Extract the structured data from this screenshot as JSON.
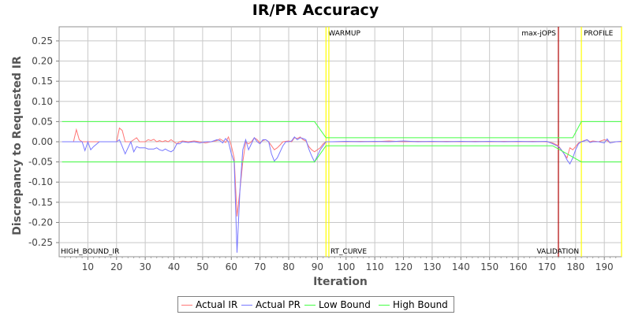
{
  "chart_data": {
    "type": "line",
    "title": "IR/PR Accuracy",
    "xlabel": "Iteration",
    "ylabel": "Discrepancy to Requested IR",
    "xlim": [
      0,
      196
    ],
    "ylim": [
      -0.285,
      0.285
    ],
    "x_ticks": [
      10,
      20,
      30,
      40,
      50,
      60,
      70,
      80,
      90,
      100,
      110,
      120,
      130,
      140,
      150,
      160,
      170,
      180,
      190
    ],
    "y_ticks": [
      0.25,
      0.2,
      0.15,
      0.1,
      0.05,
      0.0,
      -0.05,
      -0.1,
      -0.15,
      -0.2,
      -0.25
    ],
    "y_tick_labels": [
      "0.25",
      "0.20",
      "0.15",
      "0.10",
      "0.05",
      "0.00",
      "-0.05",
      "-0.10",
      "-0.15",
      "-0.20",
      "-0.25"
    ],
    "grid": true,
    "legend_position": "bottom",
    "markers": [
      {
        "x": 93,
        "label": "WARMUP",
        "color": "#ffff00"
      },
      {
        "x": 94,
        "label": "",
        "color": "#ffff00"
      },
      {
        "x": 174,
        "label": "max-jOPS",
        "color": "#b00000"
      },
      {
        "x": 182,
        "label": "PROFILE",
        "color": "#ffff00"
      },
      {
        "x": 196,
        "label": "",
        "color": "#ffff00"
      }
    ],
    "annotations": [
      "HIGH_BOUND_IR",
      "RT_CURVE",
      "VALIDATION"
    ],
    "series": [
      {
        "name": "Actual IR",
        "color": "#ff7777",
        "points": [
          [
            1,
            0
          ],
          [
            5,
            0
          ],
          [
            6,
            0.03
          ],
          [
            7,
            0.005
          ],
          [
            8,
            0
          ],
          [
            10,
            0
          ],
          [
            12,
            0
          ],
          [
            14,
            0
          ],
          [
            16,
            0
          ],
          [
            18,
            0
          ],
          [
            20,
            0
          ],
          [
            21,
            0.034
          ],
          [
            22,
            0.028
          ],
          [
            23,
            0
          ],
          [
            25,
            0
          ],
          [
            27,
            0.01
          ],
          [
            28,
            0
          ],
          [
            30,
            0
          ],
          [
            31,
            0.005
          ],
          [
            32,
            0.003
          ],
          [
            33,
            0.006
          ],
          [
            34,
            0
          ],
          [
            35,
            0.003
          ],
          [
            36,
            0
          ],
          [
            37,
            0.003
          ],
          [
            38,
            0
          ],
          [
            39,
            0.005
          ],
          [
            40,
            0
          ],
          [
            41,
            -0.005
          ],
          [
            42,
            0
          ],
          [
            43,
            0.002
          ],
          [
            45,
            0
          ],
          [
            47,
            0.002
          ],
          [
            49,
            0
          ],
          [
            51,
            -0.003
          ],
          [
            53,
            0
          ],
          [
            55,
            0.003
          ],
          [
            56,
            0.007
          ],
          [
            57,
            0.003
          ],
          [
            58,
            -0.002
          ],
          [
            59,
            0.012
          ],
          [
            60,
            -0.01
          ],
          [
            61,
            -0.04
          ],
          [
            62,
            -0.185
          ],
          [
            63,
            -0.12
          ],
          [
            64,
            -0.05
          ],
          [
            65,
            0
          ],
          [
            66,
            -0.005
          ],
          [
            67,
            0
          ],
          [
            68,
            0.01
          ],
          [
            69,
            0.005
          ],
          [
            70,
            -0.003
          ],
          [
            71,
            0.003
          ],
          [
            72,
            0.005
          ],
          [
            73,
            0
          ],
          [
            74,
            -0.01
          ],
          [
            75,
            -0.02
          ],
          [
            76,
            -0.015
          ],
          [
            77,
            -0.008
          ],
          [
            78,
            0
          ],
          [
            80,
            0.002
          ],
          [
            81,
            0
          ],
          [
            82,
            0.01
          ],
          [
            83,
            0.008
          ],
          [
            84,
            0.012
          ],
          [
            85,
            0.005
          ],
          [
            86,
            0.002
          ],
          [
            87,
            -0.012
          ],
          [
            88,
            -0.02
          ],
          [
            89,
            -0.025
          ],
          [
            90,
            -0.02
          ],
          [
            91,
            -0.015
          ],
          [
            92,
            -0.005
          ],
          [
            93,
            0
          ],
          [
            95,
            0
          ],
          [
            100,
            0
          ],
          [
            105,
            0.001
          ],
          [
            110,
            0
          ],
          [
            115,
            0.002
          ],
          [
            120,
            0
          ],
          [
            125,
            0.001
          ],
          [
            130,
            0
          ],
          [
            135,
            0.001
          ],
          [
            140,
            0
          ],
          [
            145,
            0.001
          ],
          [
            150,
            0
          ],
          [
            155,
            0.001
          ],
          [
            160,
            0
          ],
          [
            165,
            0.001
          ],
          [
            170,
            0
          ],
          [
            172,
            -0.003
          ],
          [
            174,
            -0.01
          ],
          [
            175,
            -0.02
          ],
          [
            176,
            -0.03
          ],
          [
            177,
            -0.04
          ],
          [
            178,
            -0.015
          ],
          [
            179,
            -0.02
          ],
          [
            180,
            -0.012
          ],
          [
            181,
            -0.003
          ],
          [
            182,
            0
          ],
          [
            183,
            0.003
          ],
          [
            184,
            0.005
          ],
          [
            185,
            0
          ],
          [
            186,
            0.002
          ],
          [
            188,
            0
          ],
          [
            190,
            0.005
          ],
          [
            191,
            0.003
          ],
          [
            192,
            -0.003
          ],
          [
            194,
            0
          ],
          [
            196,
            0
          ]
        ]
      },
      {
        "name": "Actual PR",
        "color": "#7777ff",
        "points": [
          [
            1,
            0
          ],
          [
            8,
            0
          ],
          [
            9,
            -0.022
          ],
          [
            10,
            0
          ],
          [
            11,
            -0.02
          ],
          [
            12,
            -0.012
          ],
          [
            13,
            -0.006
          ],
          [
            14,
            0
          ],
          [
            20,
            0
          ],
          [
            21,
            0.005
          ],
          [
            22,
            -0.012
          ],
          [
            23,
            -0.03
          ],
          [
            24,
            -0.015
          ],
          [
            25,
            0
          ],
          [
            26,
            -0.025
          ],
          [
            27,
            -0.012
          ],
          [
            28,
            -0.015
          ],
          [
            30,
            -0.015
          ],
          [
            31,
            -0.018
          ],
          [
            33,
            -0.018
          ],
          [
            34,
            -0.015
          ],
          [
            35,
            -0.02
          ],
          [
            36,
            -0.022
          ],
          [
            37,
            -0.018
          ],
          [
            38,
            -0.022
          ],
          [
            39,
            -0.025
          ],
          [
            40,
            -0.02
          ],
          [
            41,
            -0.005
          ],
          [
            42,
            -0.005
          ],
          [
            43,
            0
          ],
          [
            45,
            -0.002
          ],
          [
            47,
            0
          ],
          [
            49,
            -0.003
          ],
          [
            51,
            0
          ],
          [
            53,
            0
          ],
          [
            55,
            0.005
          ],
          [
            56,
            0.003
          ],
          [
            57,
            -0.003
          ],
          [
            58,
            0.008
          ],
          [
            59,
            0
          ],
          [
            60,
            -0.03
          ],
          [
            61,
            -0.05
          ],
          [
            62,
            -0.275
          ],
          [
            63,
            -0.12
          ],
          [
            64,
            -0.02
          ],
          [
            65,
            0.005
          ],
          [
            66,
            -0.02
          ],
          [
            67,
            -0.005
          ],
          [
            68,
            0.01
          ],
          [
            69,
            0
          ],
          [
            70,
            -0.005
          ],
          [
            71,
            0.005
          ],
          [
            72,
            0.005
          ],
          [
            73,
            0
          ],
          [
            74,
            -0.03
          ],
          [
            75,
            -0.048
          ],
          [
            76,
            -0.04
          ],
          [
            77,
            -0.025
          ],
          [
            78,
            -0.01
          ],
          [
            79,
            0
          ],
          [
            80,
            0
          ],
          [
            81,
            0.002
          ],
          [
            82,
            0.012
          ],
          [
            83,
            0.005
          ],
          [
            84,
            0.01
          ],
          [
            85,
            0.008
          ],
          [
            86,
            0.005
          ],
          [
            87,
            -0.018
          ],
          [
            88,
            -0.035
          ],
          [
            89,
            -0.05
          ],
          [
            90,
            -0.035
          ],
          [
            91,
            -0.02
          ],
          [
            92,
            -0.01
          ],
          [
            93,
            0
          ],
          [
            95,
            0
          ],
          [
            100,
            0.001
          ],
          [
            105,
            0
          ],
          [
            110,
            0.001
          ],
          [
            115,
            0
          ],
          [
            120,
            0.002
          ],
          [
            125,
            0
          ],
          [
            130,
            0.001
          ],
          [
            135,
            0
          ],
          [
            140,
            0.001
          ],
          [
            145,
            0
          ],
          [
            150,
            0.001
          ],
          [
            155,
            0
          ],
          [
            160,
            0.001
          ],
          [
            165,
            0
          ],
          [
            170,
            0.001
          ],
          [
            172,
            -0.005
          ],
          [
            174,
            -0.012
          ],
          [
            175,
            -0.02
          ],
          [
            176,
            -0.03
          ],
          [
            177,
            -0.045
          ],
          [
            178,
            -0.055
          ],
          [
            179,
            -0.04
          ],
          [
            180,
            -0.02
          ],
          [
            181,
            -0.005
          ],
          [
            182,
            0
          ],
          [
            183,
            0.002
          ],
          [
            184,
            0.005
          ],
          [
            185,
            -0.002
          ],
          [
            186,
            0
          ],
          [
            188,
            0
          ],
          [
            190,
            -0.003
          ],
          [
            191,
            0.007
          ],
          [
            192,
            -0.003
          ],
          [
            194,
            0
          ],
          [
            196,
            0.001
          ]
        ]
      },
      {
        "name": "Low Bound",
        "color": "#44ff44",
        "points": [
          [
            1,
            -0.05
          ],
          [
            89,
            -0.05
          ],
          [
            93,
            -0.01
          ],
          [
            172,
            -0.01
          ],
          [
            182,
            -0.05
          ],
          [
            196,
            -0.05
          ]
        ]
      },
      {
        "name": "High Bound",
        "color": "#44ff44",
        "points": [
          [
            1,
            0.05
          ],
          [
            89,
            0.05
          ],
          [
            93,
            0.01
          ],
          [
            179,
            0.01
          ],
          [
            182,
            0.05
          ],
          [
            196,
            0.05
          ]
        ]
      }
    ]
  }
}
